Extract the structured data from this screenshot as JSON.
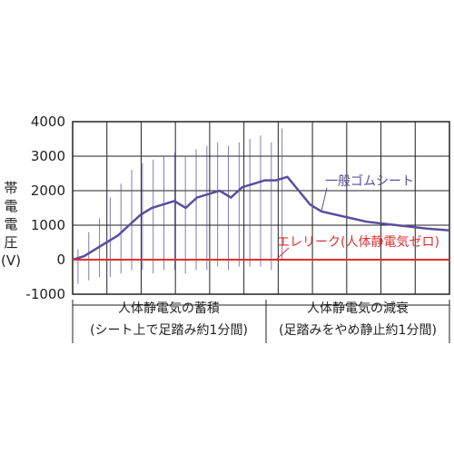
{
  "chart_data": {
    "type": "line",
    "ylabel_chars": [
      "帯",
      "電",
      "電",
      "圧",
      "(V)"
    ],
    "yticks": [
      4000,
      3000,
      2000,
      1000,
      0,
      -1000
    ],
    "tick_labels": [
      "4000",
      "3000",
      "2000",
      "1000",
      "0",
      "-1000"
    ],
    "ylim": [
      -1000,
      4000
    ],
    "grid": true,
    "x_phases": [
      {
        "label": "人体静電気の蓄積",
        "sublabel": "(シート上で足踏み約1分間)",
        "range": [
          0,
          0.57
        ]
      },
      {
        "label": "人体静電気の減衰",
        "sublabel": "(足踏みをやめ静止約1分間)",
        "range": [
          0.57,
          1.0
        ]
      }
    ],
    "series": [
      {
        "name": "一般ゴムシート",
        "color": "#5a4e9c",
        "x": [
          0.0,
          0.03,
          0.06,
          0.09,
          0.12,
          0.15,
          0.18,
          0.21,
          0.24,
          0.27,
          0.3,
          0.33,
          0.36,
          0.39,
          0.42,
          0.45,
          0.48,
          0.51,
          0.54,
          0.57,
          0.6,
          0.63,
          0.66,
          0.7,
          0.74,
          0.78,
          0.82,
          0.86,
          0.9,
          0.94,
          1.0
        ],
        "values": [
          0,
          100,
          300,
          500,
          700,
          1000,
          1300,
          1500,
          1600,
          1700,
          1500,
          1800,
          1900,
          2000,
          1800,
          2100,
          2200,
          2300,
          2300,
          2400,
          2000,
          1600,
          1400,
          1300,
          1200,
          1100,
          1050,
          1000,
          950,
          900,
          850
        ],
        "spike_high": [
          300,
          800,
          1200,
          1800,
          2200,
          2600,
          2800,
          2900,
          3000,
          3100,
          3000,
          3200,
          3300,
          3400,
          3300,
          3400,
          3500,
          3600,
          3400,
          3800
        ],
        "spike_low": [
          -700,
          -600,
          -500,
          -500,
          -400,
          -300,
          -300,
          -400,
          -300,
          -300,
          -400,
          -300,
          -300,
          -200,
          -300,
          -200,
          -200,
          -200,
          -300,
          0
        ]
      },
      {
        "name": "エレリーク(人体静電気ゼロ)",
        "color": "#e03030",
        "x": [
          0,
          1
        ],
        "values": [
          0,
          0
        ]
      }
    ]
  }
}
